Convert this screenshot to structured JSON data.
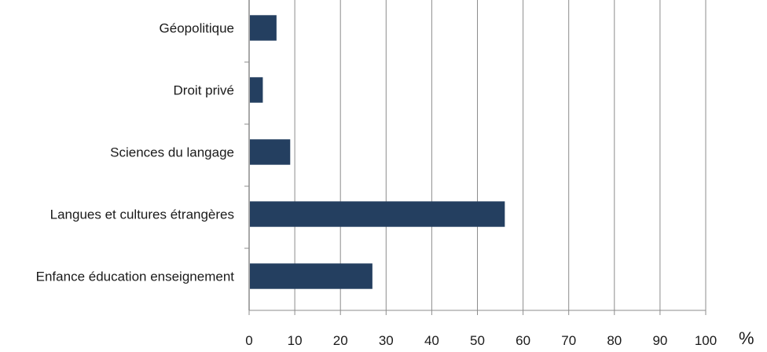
{
  "chart_data": {
    "type": "bar",
    "orientation": "horizontal",
    "categories": [
      "Géopolitique",
      "Droit privé",
      "Sciences du langage",
      "Langues et cultures étrangères",
      "Enfance éducation enseignement"
    ],
    "values": [
      6,
      3,
      9,
      56,
      27
    ],
    "xlim": [
      0,
      100
    ],
    "xticks": [
      "0",
      "10",
      "20",
      "30",
      "40",
      "50",
      "60",
      "70",
      "80",
      "90",
      "100"
    ],
    "xlabel": "%",
    "grid": "vertical",
    "bar_color": "#243f60",
    "grid_color": "#8c8c8c",
    "axis_color": "#8c8c8c"
  }
}
